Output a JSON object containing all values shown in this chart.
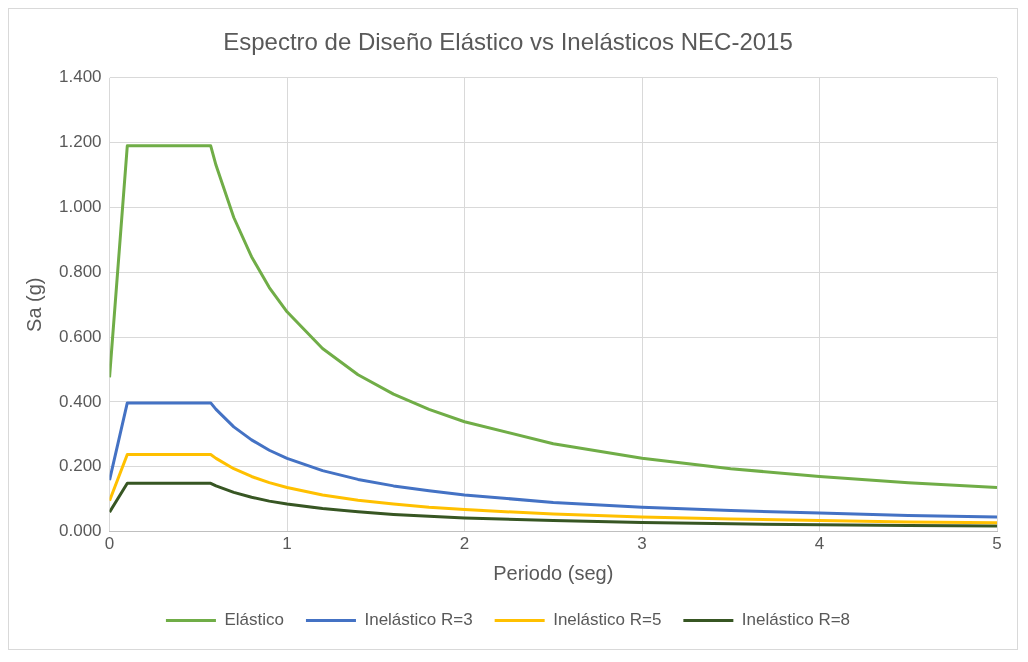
{
  "chart_data": {
    "type": "line",
    "title": "Espectro de Diseño Elástico vs Inelásticos NEC-2015",
    "xlabel": "Periodo (seg)",
    "ylabel": "Sa (g)",
    "x": [
      0,
      0.1,
      0.57,
      0.6,
      0.7,
      0.8,
      0.9,
      1,
      1.2,
      1.4,
      1.6,
      1.8,
      2,
      2.5,
      3,
      3.5,
      4,
      4.5,
      5
    ],
    "series": [
      {
        "name": "Elástico",
        "color": "#70ad47",
        "values": [
          0.476,
          1.19,
          1.19,
          1.13,
          0.969,
          0.848,
          0.753,
          0.678,
          0.565,
          0.484,
          0.424,
          0.377,
          0.339,
          0.271,
          0.226,
          0.194,
          0.17,
          0.151,
          0.136
        ]
      },
      {
        "name": "Inelástico R=3",
        "color": "#4472c4",
        "values": [
          0.159,
          0.397,
          0.397,
          0.377,
          0.323,
          0.283,
          0.251,
          0.226,
          0.188,
          0.161,
          0.141,
          0.126,
          0.113,
          0.09,
          0.075,
          0.065,
          0.057,
          0.05,
          0.045
        ]
      },
      {
        "name": "Inelástico R=5",
        "color": "#ffc000",
        "values": [
          0.095,
          0.238,
          0.238,
          0.226,
          0.194,
          0.17,
          0.151,
          0.136,
          0.113,
          0.097,
          0.085,
          0.075,
          0.068,
          0.054,
          0.045,
          0.039,
          0.034,
          0.03,
          0.027
        ]
      },
      {
        "name": "Inelástico R=8",
        "color": "#375623",
        "values": [
          0.06,
          0.149,
          0.149,
          0.141,
          0.121,
          0.106,
          0.094,
          0.085,
          0.071,
          0.061,
          0.053,
          0.047,
          0.042,
          0.034,
          0.028,
          0.024,
          0.021,
          0.019,
          0.017
        ]
      }
    ],
    "xlim": [
      0,
      5
    ],
    "xticks": [
      0,
      1,
      2,
      3,
      4,
      5
    ],
    "ylim": [
      0,
      1.4
    ],
    "yticks": [
      {
        "value": 0,
        "label": "0.000"
      },
      {
        "value": 0.2,
        "label": "0.200"
      },
      {
        "value": 0.4,
        "label": "0.400"
      },
      {
        "value": 0.6,
        "label": "0.600"
      },
      {
        "value": 0.8,
        "label": "0.800"
      },
      {
        "value": 1,
        "label": "1.000"
      },
      {
        "value": 1.2,
        "label": "1.200"
      },
      {
        "value": 1.4,
        "label": "1.400"
      }
    ],
    "grid": true,
    "legend": "bottom",
    "marker": "none",
    "line_style": "solid"
  }
}
